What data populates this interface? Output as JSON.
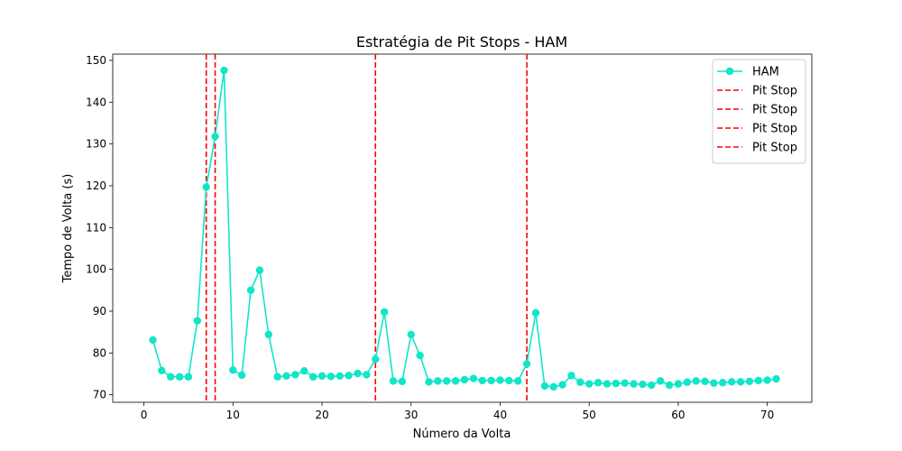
{
  "chart_data": {
    "type": "line",
    "title": "Estratégia de Pit Stops - HAM",
    "xlabel": "Número da Volta",
    "ylabel": "Tempo de Volta (s)",
    "xlim": [
      -3.5,
      75
    ],
    "ylim": [
      68.2,
      151.5
    ],
    "xticks": [
      0,
      10,
      20,
      30,
      40,
      50,
      60,
      70
    ],
    "yticks": [
      70,
      80,
      90,
      100,
      110,
      120,
      130,
      140,
      150
    ],
    "grid": false,
    "legend_position": "top-right",
    "series": [
      {
        "name": "HAM",
        "color": "#10e6c8",
        "marker": "circle",
        "x": [
          1,
          2,
          3,
          4,
          5,
          6,
          7,
          8,
          9,
          10,
          11,
          12,
          13,
          14,
          15,
          16,
          17,
          18,
          19,
          20,
          21,
          22,
          23,
          24,
          25,
          26,
          27,
          28,
          29,
          30,
          31,
          32,
          33,
          34,
          35,
          36,
          37,
          38,
          39,
          40,
          41,
          42,
          43,
          44,
          45,
          46,
          47,
          48,
          49,
          50,
          51,
          52,
          53,
          54,
          55,
          56,
          57,
          58,
          59,
          60,
          61,
          62,
          63,
          64,
          65,
          66,
          67,
          68,
          69,
          70,
          71
        ],
        "y": [
          83.1,
          75.8,
          74.3,
          74.3,
          74.3,
          87.7,
          119.7,
          131.8,
          147.6,
          75.9,
          74.7,
          95.0,
          99.8,
          84.4,
          74.3,
          74.5,
          74.8,
          75.7,
          74.3,
          74.5,
          74.4,
          74.5,
          74.6,
          75.1,
          74.8,
          78.5,
          89.8,
          73.3,
          73.2,
          84.4,
          79.4,
          73.1,
          73.3,
          73.3,
          73.3,
          73.6,
          73.9,
          73.4,
          73.4,
          73.5,
          73.4,
          73.3,
          77.4,
          89.6,
          72.1,
          71.9,
          72.4,
          74.6,
          73.0,
          72.6,
          72.9,
          72.6,
          72.7,
          72.8,
          72.6,
          72.5,
          72.3,
          73.3,
          72.3,
          72.6,
          73.0,
          73.3,
          73.2,
          72.8,
          72.9,
          73.1,
          73.1,
          73.2,
          73.4,
          73.5,
          73.8
        ]
      }
    ],
    "pit_stops": {
      "name": "Pit Stop",
      "color": "#ff0000",
      "style": "dashed",
      "laps": [
        7,
        8,
        26,
        43
      ]
    }
  }
}
